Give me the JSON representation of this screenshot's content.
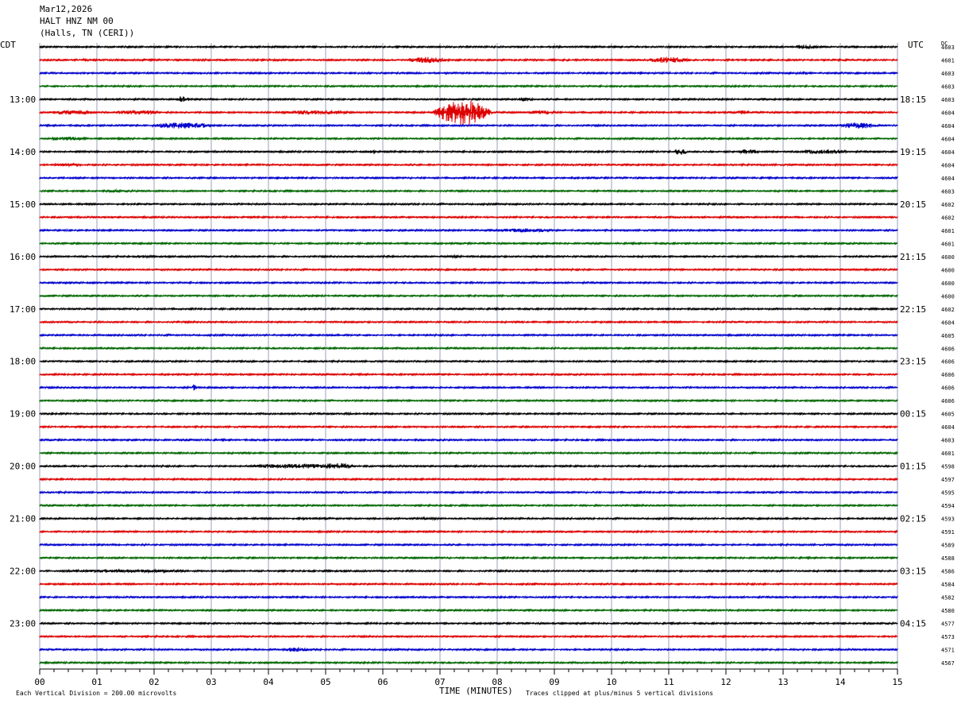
{
  "header": {
    "date": "Mar12,2026",
    "station": "HALT HNZ NM 00",
    "location": "(Halls, TN (CERI))"
  },
  "left_axis_label": "CDT",
  "right_axis_label": "UTC",
  "dc_label": "DC",
  "footer": {
    "scale_note": "Each Vertical Division =  200.00 microvolts",
    "xlabel": "TIME (MINUTES)",
    "clip_note": "Traces clipped at plus/minus 5 vertical divisions"
  },
  "chart_data": {
    "type": "line",
    "subtype": "helicorder",
    "x_range": [
      0,
      15
    ],
    "x_ticks": [
      "00",
      "01",
      "02",
      "03",
      "04",
      "05",
      "06",
      "07",
      "08",
      "09",
      "10",
      "11",
      "12",
      "13",
      "14",
      "15"
    ],
    "trace_colors": [
      "#000000",
      "#dd0000",
      "#0000cc",
      "#006600"
    ],
    "cdt_labels": [
      "13:00",
      "14:00",
      "15:00",
      "16:00",
      "17:00",
      "18:00",
      "19:00",
      "20:00",
      "21:00",
      "22:00",
      "23:00"
    ],
    "utc_labels": [
      "18:15",
      "19:15",
      "20:15",
      "21:15",
      "22:15",
      "23:15",
      "00:15",
      "01:15",
      "02:15",
      "03:15",
      "04:15"
    ],
    "first_labeled_row": 4,
    "dc_values": [
      "4603",
      "4601",
      "4603",
      "4603",
      "4603",
      "4604",
      "4604",
      "4604",
      "4604",
      "4604",
      "4604",
      "4603",
      "4602",
      "4602",
      "4601",
      "4601",
      "4600",
      "4600",
      "4600",
      "4600",
      "4602",
      "4604",
      "4605",
      "4606",
      "4606",
      "4606",
      "4606",
      "4606",
      "4605",
      "4604",
      "4603",
      "4601",
      "4598",
      "4597",
      "4595",
      "4594",
      "4593",
      "4591",
      "4589",
      "4588",
      "4586",
      "4584",
      "4582",
      "4580",
      "4577",
      "4573",
      "4571",
      "4567"
    ],
    "events": [
      {
        "row": 0,
        "minute": 13.4,
        "amp": 3,
        "dur": 0.5
      },
      {
        "row": 1,
        "minute": 6.8,
        "amp": 4,
        "dur": 0.9
      },
      {
        "row": 1,
        "minute": 11.0,
        "amp": 4,
        "dur": 0.9
      },
      {
        "row": 1,
        "minute": 0.8,
        "amp": 1.5,
        "dur": 0.4
      },
      {
        "row": 2,
        "minute": 13.4,
        "amp": 2,
        "dur": 0.5
      },
      {
        "row": 4,
        "minute": 2.5,
        "amp": 4,
        "dur": 0.3
      },
      {
        "row": 4,
        "minute": 8.5,
        "amp": 3,
        "dur": 0.3
      },
      {
        "row": 5,
        "minute": 0.6,
        "amp": 3,
        "dur": 1.0
      },
      {
        "row": 5,
        "minute": 1.7,
        "amp": 3,
        "dur": 1.0
      },
      {
        "row": 5,
        "minute": 4.8,
        "amp": 3,
        "dur": 1.4
      },
      {
        "row": 5,
        "minute": 7.4,
        "amp": 16,
        "dur": 1.1
      },
      {
        "row": 5,
        "minute": 8.8,
        "amp": 2.5,
        "dur": 0.6
      },
      {
        "row": 5,
        "minute": 12.3,
        "amp": 2.5,
        "dur": 0.4
      },
      {
        "row": 6,
        "minute": 2.5,
        "amp": 4,
        "dur": 1.3
      },
      {
        "row": 6,
        "minute": 14.3,
        "amp": 4,
        "dur": 0.8
      },
      {
        "row": 7,
        "minute": 0.5,
        "amp": 2.5,
        "dur": 0.8
      },
      {
        "row": 7,
        "minute": 1.5,
        "amp": 2,
        "dur": 0.5
      },
      {
        "row": 8,
        "minute": 11.2,
        "amp": 4,
        "dur": 0.3
      },
      {
        "row": 8,
        "minute": 12.4,
        "amp": 3,
        "dur": 0.5
      },
      {
        "row": 8,
        "minute": 13.7,
        "amp": 3,
        "dur": 1.1
      },
      {
        "row": 8,
        "minute": 5.8,
        "amp": 2,
        "dur": 0.3
      },
      {
        "row": 9,
        "minute": 0.5,
        "amp": 2,
        "dur": 0.7
      },
      {
        "row": 11,
        "minute": 1.3,
        "amp": 2,
        "dur": 0.3
      },
      {
        "row": 14,
        "minute": 8.5,
        "amp": 2.5,
        "dur": 1.4
      },
      {
        "row": 16,
        "minute": 1.8,
        "amp": 2,
        "dur": 0.3
      },
      {
        "row": 16,
        "minute": 6.1,
        "amp": 2,
        "dur": 0.3
      },
      {
        "row": 16,
        "minute": 7.2,
        "amp": 2,
        "dur": 0.3
      },
      {
        "row": 26,
        "minute": 2.7,
        "amp": 5,
        "dur": 0.1
      },
      {
        "row": 28,
        "minute": 5.4,
        "amp": 2,
        "dur": 0.2
      },
      {
        "row": 32,
        "minute": 4.5,
        "amp": 3,
        "dur": 2.2
      },
      {
        "row": 32,
        "minute": 5.2,
        "amp": 4,
        "dur": 0.8
      },
      {
        "row": 36,
        "minute": 4.8,
        "amp": 1.5,
        "dur": 1.0
      },
      {
        "row": 36,
        "minute": 6.8,
        "amp": 1.5,
        "dur": 0.6
      },
      {
        "row": 40,
        "minute": 1.5,
        "amp": 2,
        "dur": 3.0
      },
      {
        "row": 46,
        "minute": 4.5,
        "amp": 3,
        "dur": 0.6
      }
    ]
  }
}
